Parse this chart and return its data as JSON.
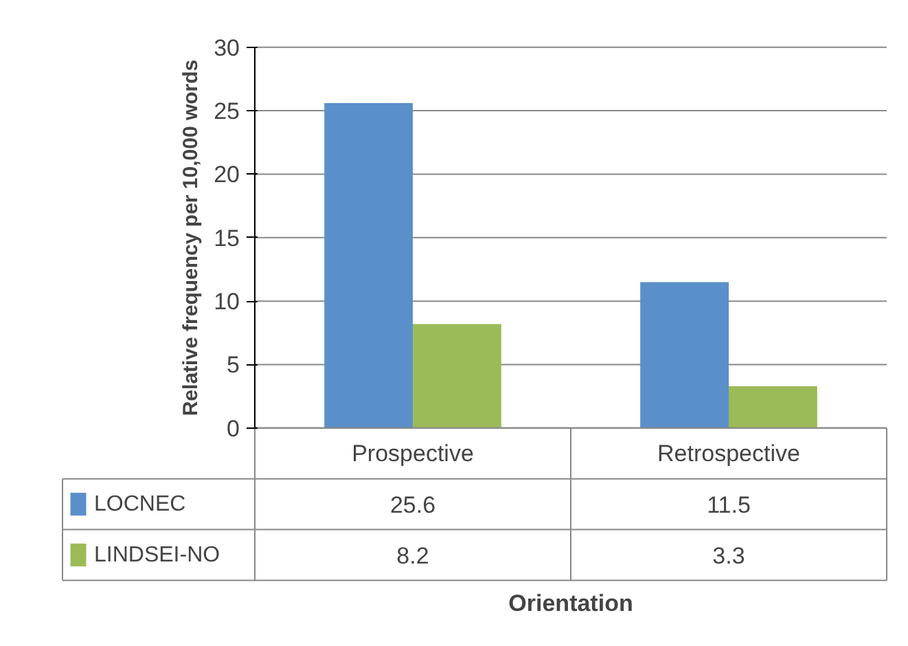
{
  "chart_data": {
    "type": "bar",
    "annotations": [
      "Orientation"
    ],
    "ylabel": "Relative frequency per 10,000 words",
    "categories": [
      "Prospective",
      "Retrospective"
    ],
    "series": [
      {
        "name": "LOCNEC",
        "color": "#5b8fc9",
        "values": [
          25.6,
          11.5
        ]
      },
      {
        "name": "LINDSEI-NO",
        "color": "#9bbb59",
        "values": [
          8.2,
          3.3
        ]
      }
    ],
    "ylim": [
      0,
      30
    ],
    "yticks": [
      0,
      5,
      10,
      15,
      20,
      25,
      30
    ],
    "grid": "y",
    "legend": "bottom",
    "data_labels": true
  }
}
